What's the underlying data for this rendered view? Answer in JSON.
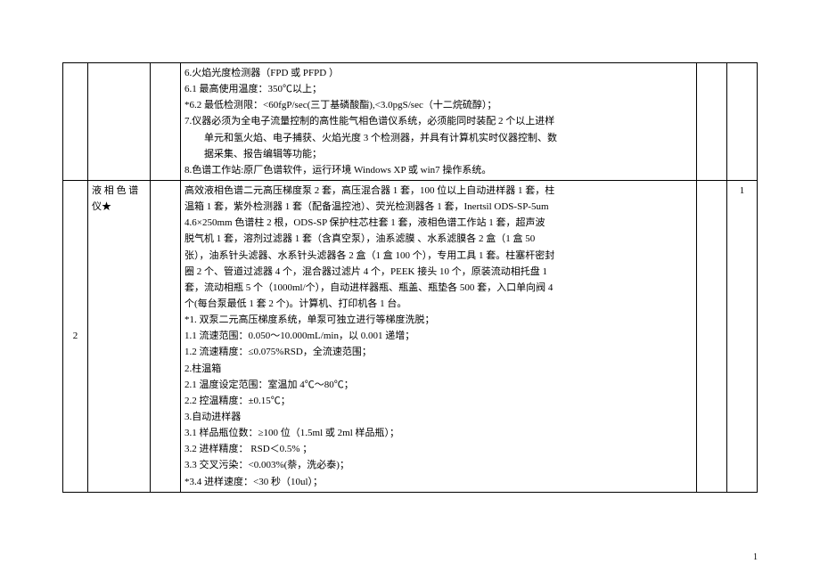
{
  "page_number": "1",
  "rows": [
    {
      "idx": "",
      "name": "",
      "blank": "",
      "qty": "",
      "spec_lines": [
        "6.火焰光度检测器（FPD 或 PFPD ）",
        "6.1 最高使用温度：350℃以上；",
        "*6.2 最低检测限：<60fgP/sec(三丁基磷酸酯),<3.0pgS/sec（十二烷硫醇）；",
        "7.仪器必须为全电子流量控制的高性能气相色谱仪系统，必须能同时装配 2 个以上进样",
        "　　单元和氢火焰、电子捕获、火焰光度 3 个检测器，并具有计算机实时仪器控制、数",
        "　　据采集、报告编辑等功能；",
        "8.色谱工作站:原厂色谱软件，运行环境 Windows XP  或 win7 操作系统。"
      ]
    },
    {
      "idx": "2",
      "name": "液 相 色 谱 仪★",
      "blank": "",
      "qty": "1",
      "spec_lines": [
        "高效液相色谱二元高压梯度泵 2 套，高压混合器 1 套，100 位以上自动进样器 1 套，柱",
        "温箱 1 套，紫外检测器 1 套（配备温控池）、荧光检测器各 1 套，Inertsil ODS-SP-5um",
        "4.6×250mm 色谱柱 2 根，ODS-SP 保护柱芯柱套 1 套，液相色谱工作站 1 套，超声波",
        "脱气机 1 套，溶剂过滤器 1 套（含真空泵），油系滤膜 、水系滤膜各 2 盒（1 盒 50",
        "张），油系针头滤器、水系针头滤器各 2 盒（1 盒 100 个），专用工具 1 套。柱塞杆密封",
        "圈 2 个、管道过滤器 4 个，混合器过滤片 4 个，PEEK 接头 10 个，原装流动相托盘 1",
        "套，流动相瓶 5 个（1000ml/个），自动进样器瓶、瓶盖、瓶垫各 500 套，入口单向阀 4",
        "个(每台泵最低 1 套 2 个)。计算机、打印机各 1 台。",
        "*1. 双泵二元高压梯度系统，单泵可独立进行等梯度洗脱；",
        "1.1 流速范围：0.050～10.000mL/min，以 0.001 递增；",
        "1.2 流速精度：≤0.075%RSD，全流速范围；",
        "2.柱温箱",
        "2.1 温度设定范围：室温加 4℃～80℃；",
        "2.2 控温精度：±0.15℃；",
        "3.自动进样器",
        "3.1 样品瓶位数：≥100 位（1.5ml 或 2ml 样品瓶）；",
        "3.2 进样精度：  RSD＜0.5% ；",
        "3.3 交叉污染：<0.003%(萘，洗必泰)；",
        "*3.4 进样速度：<30 秒（10ul）；"
      ]
    }
  ]
}
